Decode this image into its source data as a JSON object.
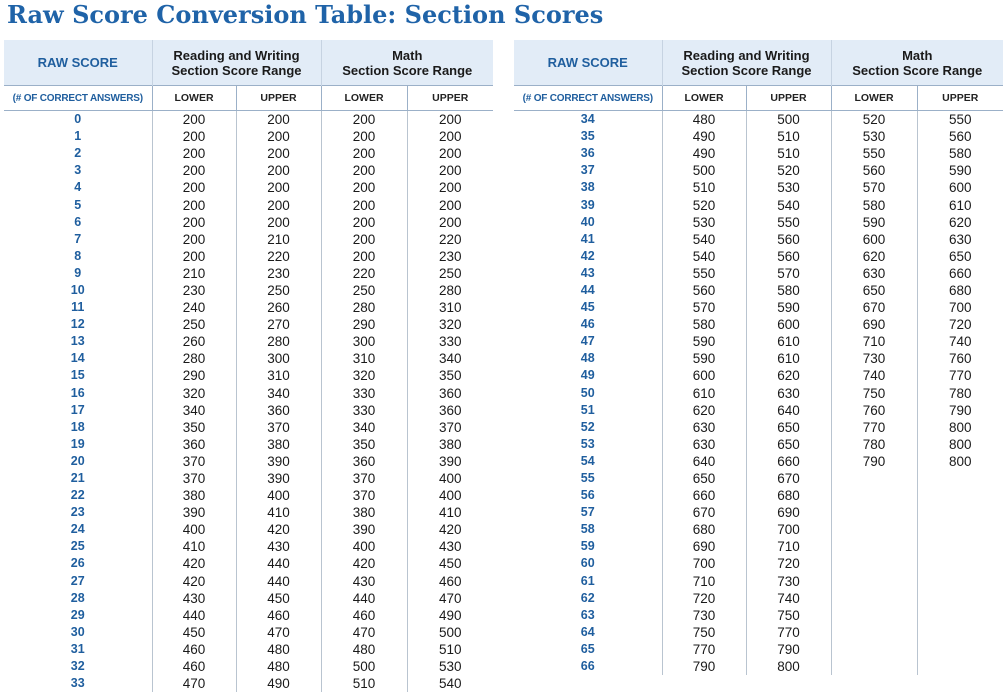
{
  "title": "Raw Score Conversion Table: Section Scores",
  "headers": {
    "raw_score": "RAW SCORE",
    "rw_line1": "Reading and Writing",
    "rw_line2": "Section Score Range",
    "math_line1": "Math",
    "math_line2": "Section Score Range",
    "raw_sub": "(# OF CORRECT ANSWERS)",
    "lower": "LOWER",
    "upper": "UPPER"
  },
  "left_rows": [
    [
      "0",
      "200",
      "200",
      "200",
      "200"
    ],
    [
      "1",
      "200",
      "200",
      "200",
      "200"
    ],
    [
      "2",
      "200",
      "200",
      "200",
      "200"
    ],
    [
      "3",
      "200",
      "200",
      "200",
      "200"
    ],
    [
      "4",
      "200",
      "200",
      "200",
      "200"
    ],
    [
      "5",
      "200",
      "200",
      "200",
      "200"
    ],
    [
      "6",
      "200",
      "200",
      "200",
      "200"
    ],
    [
      "7",
      "200",
      "210",
      "200",
      "220"
    ],
    [
      "8",
      "200",
      "220",
      "200",
      "230"
    ],
    [
      "9",
      "210",
      "230",
      "220",
      "250"
    ],
    [
      "10",
      "230",
      "250",
      "250",
      "280"
    ],
    [
      "11",
      "240",
      "260",
      "280",
      "310"
    ],
    [
      "12",
      "250",
      "270",
      "290",
      "320"
    ],
    [
      "13",
      "260",
      "280",
      "300",
      "330"
    ],
    [
      "14",
      "280",
      "300",
      "310",
      "340"
    ],
    [
      "15",
      "290",
      "310",
      "320",
      "350"
    ],
    [
      "16",
      "320",
      "340",
      "330",
      "360"
    ],
    [
      "17",
      "340",
      "360",
      "330",
      "360"
    ],
    [
      "18",
      "350",
      "370",
      "340",
      "370"
    ],
    [
      "19",
      "360",
      "380",
      "350",
      "380"
    ],
    [
      "20",
      "370",
      "390",
      "360",
      "390"
    ],
    [
      "21",
      "370",
      "390",
      "370",
      "400"
    ],
    [
      "22",
      "380",
      "400",
      "370",
      "400"
    ],
    [
      "23",
      "390",
      "410",
      "380",
      "410"
    ],
    [
      "24",
      "400",
      "420",
      "390",
      "420"
    ],
    [
      "25",
      "410",
      "430",
      "400",
      "430"
    ],
    [
      "26",
      "420",
      "440",
      "420",
      "450"
    ],
    [
      "27",
      "420",
      "440",
      "430",
      "460"
    ],
    [
      "28",
      "430",
      "450",
      "440",
      "470"
    ],
    [
      "29",
      "440",
      "460",
      "460",
      "490"
    ],
    [
      "30",
      "450",
      "470",
      "470",
      "500"
    ],
    [
      "31",
      "460",
      "480",
      "480",
      "510"
    ],
    [
      "32",
      "460",
      "480",
      "500",
      "530"
    ],
    [
      "33",
      "470",
      "490",
      "510",
      "540"
    ]
  ],
  "right_rows": [
    [
      "34",
      "480",
      "500",
      "520",
      "550"
    ],
    [
      "35",
      "490",
      "510",
      "530",
      "560"
    ],
    [
      "36",
      "490",
      "510",
      "550",
      "580"
    ],
    [
      "37",
      "500",
      "520",
      "560",
      "590"
    ],
    [
      "38",
      "510",
      "530",
      "570",
      "600"
    ],
    [
      "39",
      "520",
      "540",
      "580",
      "610"
    ],
    [
      "40",
      "530",
      "550",
      "590",
      "620"
    ],
    [
      "41",
      "540",
      "560",
      "600",
      "630"
    ],
    [
      "42",
      "540",
      "560",
      "620",
      "650"
    ],
    [
      "43",
      "550",
      "570",
      "630",
      "660"
    ],
    [
      "44",
      "560",
      "580",
      "650",
      "680"
    ],
    [
      "45",
      "570",
      "590",
      "670",
      "700"
    ],
    [
      "46",
      "580",
      "600",
      "690",
      "720"
    ],
    [
      "47",
      "590",
      "610",
      "710",
      "740"
    ],
    [
      "48",
      "590",
      "610",
      "730",
      "760"
    ],
    [
      "49",
      "600",
      "620",
      "740",
      "770"
    ],
    [
      "50",
      "610",
      "630",
      "750",
      "780"
    ],
    [
      "51",
      "620",
      "640",
      "760",
      "790"
    ],
    [
      "52",
      "630",
      "650",
      "770",
      "800"
    ],
    [
      "53",
      "630",
      "650",
      "780",
      "800"
    ],
    [
      "54",
      "640",
      "660",
      "790",
      "800"
    ],
    [
      "55",
      "650",
      "670",
      "",
      ""
    ],
    [
      "56",
      "660",
      "680",
      "",
      ""
    ],
    [
      "57",
      "670",
      "690",
      "",
      ""
    ],
    [
      "58",
      "680",
      "700",
      "",
      ""
    ],
    [
      "59",
      "690",
      "710",
      "",
      ""
    ],
    [
      "60",
      "700",
      "720",
      "",
      ""
    ],
    [
      "61",
      "710",
      "730",
      "",
      ""
    ],
    [
      "62",
      "720",
      "740",
      "",
      ""
    ],
    [
      "63",
      "730",
      "750",
      "",
      ""
    ],
    [
      "64",
      "750",
      "770",
      "",
      ""
    ],
    [
      "65",
      "770",
      "790",
      "",
      ""
    ],
    [
      "66",
      "790",
      "800",
      "",
      ""
    ]
  ]
}
